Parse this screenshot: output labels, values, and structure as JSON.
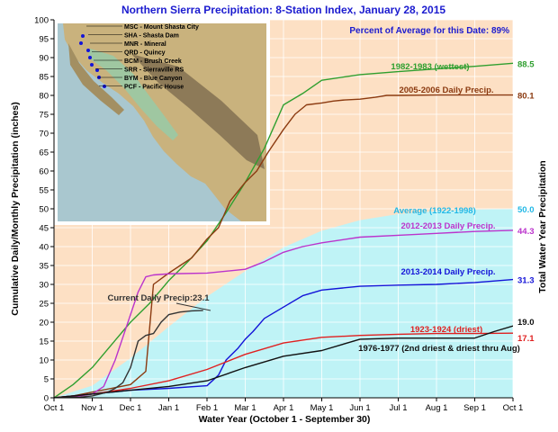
{
  "chart_data": {
    "type": "line",
    "title": "Northern Sierra Precipitation: 8-Station Index, January 28, 2015",
    "annotation_top": "Percent of Average for this Date: 89%",
    "xlabel": "Water Year (October 1 - September 30)",
    "ylabel": "Cumulative Daily/Monthly Precipitation (inches)",
    "ylabel_right": "Total Water Year Precipitation",
    "ylim": [
      0,
      100
    ],
    "yticks": [
      "0",
      "5",
      "10",
      "15",
      "20",
      "25",
      "30",
      "35",
      "40",
      "45",
      "50",
      "55",
      "60",
      "65",
      "70",
      "75",
      "80",
      "85",
      "90",
      "95",
      "100"
    ],
    "xlim": [
      0,
      12
    ],
    "categories": [
      "Oct 1",
      "Nov 1",
      "Dec 1",
      "Jan 1",
      "Feb 1",
      "Mar 1",
      "Apr 1",
      "May 1",
      "Jun 1",
      "Jul 1",
      "Aug 1",
      "Sep 1",
      "Oct 1"
    ],
    "grid": true,
    "colors": {
      "background": "#fde0c4",
      "average_fill": "#bff3f6",
      "title": "#1b1bcf"
    },
    "map_legend": [
      {
        "code": "MSC",
        "name": "Mount Shasta City"
      },
      {
        "code": "SHA",
        "name": "Shasta Dam"
      },
      {
        "code": "MNR",
        "name": "Mineral"
      },
      {
        "code": "QRD",
        "name": "Quincy"
      },
      {
        "code": "BCM",
        "name": "Brush Creek"
      },
      {
        "code": "SRR",
        "name": "Sierraville RS"
      },
      {
        "code": "BYM",
        "name": "Blue Canyon"
      },
      {
        "code": "PCF",
        "name": "Pacific House"
      }
    ],
    "series": [
      {
        "name": "Average (1922-1998)",
        "total": "50.0",
        "color": "#22b8e6",
        "style": "area",
        "x": [
          0,
          1,
          2,
          3,
          4,
          5,
          6,
          7,
          8,
          9,
          10,
          11,
          12
        ],
        "y": [
          0,
          3.2,
          10.5,
          18.8,
          26.8,
          33.5,
          39.8,
          44.2,
          47.0,
          48.6,
          49.4,
          49.8,
          50.0
        ]
      },
      {
        "name": "1982-1983 (wettest)",
        "total": "88.5",
        "color": "#2f9f2f",
        "x": [
          0,
          0.5,
          1,
          1.5,
          2,
          2.5,
          3,
          3.5,
          4,
          4.5,
          5,
          5.5,
          6,
          6.5,
          7,
          8,
          9,
          10,
          11,
          12
        ],
        "y": [
          0,
          3.5,
          8.0,
          14.0,
          20.0,
          25.0,
          31.0,
          36.0,
          41.5,
          49.0,
          57.0,
          66.0,
          77.5,
          80.5,
          84.0,
          85.5,
          86.3,
          87.0,
          87.7,
          88.5
        ]
      },
      {
        "name": "2005-2006 Daily Precip.",
        "total": "80.1",
        "color": "#8b3a10",
        "x": [
          0,
          0.5,
          1,
          1.5,
          2,
          2.4,
          2.6,
          3,
          3.3,
          3.6,
          4,
          4.3,
          4.6,
          5,
          5.3,
          5.6,
          6,
          6.3,
          6.6,
          7,
          7.3,
          7.6,
          8,
          8.4,
          8.7,
          9,
          10,
          11,
          12
        ],
        "y": [
          0,
          0.5,
          1.5,
          2.5,
          3.5,
          7.0,
          30.0,
          33.0,
          35.0,
          37.0,
          42.0,
          45.0,
          52.0,
          57.0,
          60.0,
          65.0,
          71.0,
          75.0,
          77.5,
          78.0,
          78.5,
          78.8,
          79.0,
          79.5,
          80.0,
          80.0,
          80.1,
          80.1,
          80.1
        ]
      },
      {
        "name": "2012-2013 Daily Precip.",
        "total": "44.3",
        "color": "#bb33cc",
        "x": [
          0,
          0.5,
          1,
          1.3,
          1.6,
          2,
          2.2,
          2.4,
          2.6,
          3,
          4,
          5,
          5.5,
          6,
          6.5,
          7,
          8,
          9,
          10,
          11,
          12
        ],
        "y": [
          0,
          0.2,
          1.0,
          3.0,
          10.0,
          22.0,
          28.0,
          32.0,
          32.5,
          32.8,
          33.0,
          34.0,
          36.0,
          38.5,
          40.0,
          41.0,
          42.5,
          43.0,
          43.5,
          44.0,
          44.3
        ]
      },
      {
        "name": "2013-2014 Daily Precip.",
        "total": "31.3",
        "color": "#1414d8",
        "x": [
          0,
          1,
          2,
          3,
          4,
          4.3,
          4.5,
          4.8,
          5,
          5.2,
          5.5,
          6,
          6.5,
          7,
          8,
          9,
          10,
          11,
          12
        ],
        "y": [
          0,
          1.0,
          2.0,
          2.5,
          3.2,
          6.0,
          10.0,
          13.0,
          15.5,
          17.5,
          21.0,
          24.0,
          27.0,
          28.5,
          29.5,
          29.8,
          30.0,
          30.5,
          31.3
        ]
      },
      {
        "name": "1923-1924 (driest)",
        "total": "17.1",
        "color": "#e02020",
        "x": [
          0,
          1,
          2,
          3,
          4,
          5,
          6,
          7,
          8,
          9,
          10,
          11,
          12
        ],
        "y": [
          0,
          1.0,
          2.5,
          4.5,
          7.5,
          11.5,
          14.5,
          16.0,
          16.5,
          16.8,
          17.0,
          17.0,
          17.1
        ]
      },
      {
        "name": "1976-1977 (2nd driest & driest thru Aug)",
        "total": "19.0",
        "color": "#111111",
        "x": [
          0,
          1,
          2,
          3,
          4,
          5,
          6,
          7,
          8,
          9,
          10,
          11,
          11.5,
          12
        ],
        "y": [
          0,
          1.0,
          2.0,
          3.0,
          4.5,
          8.0,
          11.0,
          12.5,
          15.5,
          15.8,
          15.8,
          15.8,
          17.5,
          19.0
        ]
      },
      {
        "name": "Current Daily Precip:23.1",
        "color": "#333333",
        "x": [
          0,
          0.7,
          1,
          1.2,
          1.4,
          1.6,
          1.8,
          2,
          2.2,
          2.4,
          2.6,
          2.8,
          3,
          3.3,
          3.6,
          3.9
        ],
        "y": [
          0,
          0.2,
          0.5,
          1.0,
          1.5,
          2.5,
          4.0,
          8.0,
          15.0,
          16.5,
          17.0,
          20.0,
          22.0,
          22.7,
          23.0,
          23.1
        ]
      }
    ]
  }
}
